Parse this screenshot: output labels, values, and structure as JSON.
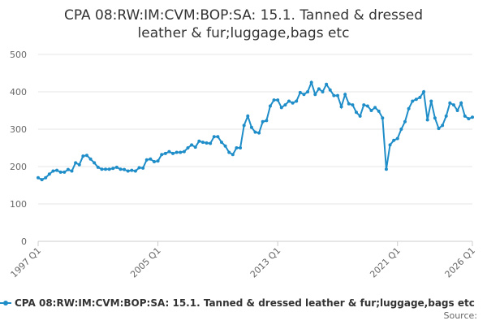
{
  "chart_data": {
    "type": "line",
    "title": "CPA 08:RW:IM:CVM:BOP:SA: 15.1. Tanned & dressed leather & fur;luggage,bags etc",
    "source": "Source:",
    "categories": [
      "1997 Q1",
      null,
      null,
      null,
      null,
      null,
      null,
      null,
      null,
      null,
      null,
      null,
      null,
      null,
      null,
      null,
      null,
      null,
      null,
      null,
      null,
      null,
      null,
      null,
      null,
      null,
      null,
      null,
      null,
      null,
      null,
      null,
      "2005 Q1",
      null,
      null,
      null,
      null,
      null,
      null,
      null,
      null,
      null,
      null,
      null,
      null,
      null,
      null,
      null,
      null,
      null,
      null,
      null,
      null,
      null,
      null,
      null,
      null,
      null,
      null,
      null,
      null,
      null,
      null,
      null,
      "2013 Q1",
      null,
      null,
      null,
      null,
      null,
      null,
      null,
      null,
      null,
      null,
      null,
      null,
      null,
      null,
      null,
      null,
      null,
      null,
      null,
      null,
      null,
      null,
      null,
      null,
      null,
      null,
      null,
      null,
      null,
      null,
      null,
      "2021 Q1",
      null,
      null,
      null,
      null,
      null,
      null,
      null,
      null,
      null,
      null,
      null,
      null,
      null,
      null,
      null,
      null,
      null,
      null,
      null,
      "2026 Q1"
    ],
    "series": [
      {
        "name": "CPA 08:RW:IM:CVM:BOP:SA: 15.1. Tanned & dressed leather & fur;luggage,bags etc",
        "color": "#1f8dc8",
        "values": [
          170,
          165,
          170,
          180,
          188,
          190,
          185,
          185,
          192,
          188,
          210,
          205,
          228,
          230,
          220,
          210,
          198,
          193,
          193,
          193,
          195,
          198,
          193,
          192,
          188,
          190,
          188,
          197,
          196,
          218,
          220,
          213,
          215,
          232,
          235,
          240,
          235,
          238,
          238,
          240,
          250,
          258,
          252,
          268,
          265,
          263,
          262,
          280,
          280,
          265,
          255,
          238,
          232,
          250,
          250,
          310,
          335,
          305,
          292,
          290,
          320,
          323,
          362,
          378,
          378,
          358,
          365,
          375,
          370,
          375,
          398,
          393,
          400,
          425,
          393,
          408,
          400,
          420,
          405,
          390,
          390,
          360,
          393,
          368,
          365,
          345,
          335,
          365,
          362,
          350,
          358,
          348,
          330,
          193,
          258,
          270,
          275,
          300,
          320,
          355,
          375,
          380,
          385,
          400,
          325,
          375,
          330,
          302,
          310,
          335,
          370,
          365,
          350,
          370,
          335,
          328,
          332
        ]
      }
    ],
    "ylim": [
      0,
      500
    ],
    "yticks": [
      0,
      100,
      200,
      300,
      400,
      500
    ],
    "grid": true
  }
}
